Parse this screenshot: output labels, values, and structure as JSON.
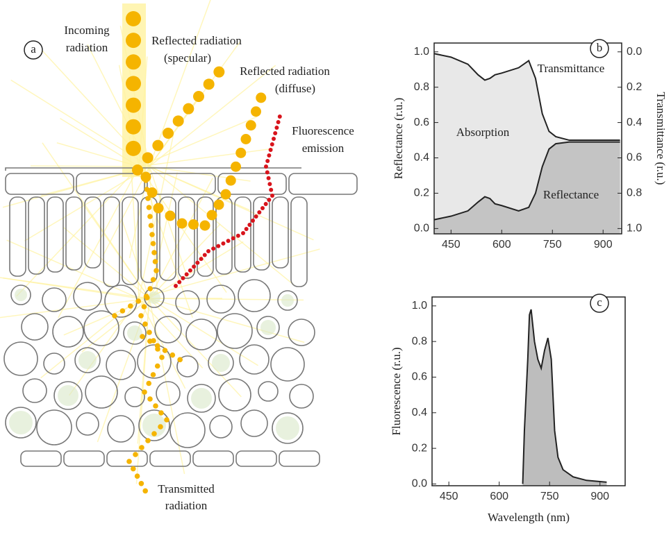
{
  "diagram": {
    "panel": "a",
    "labels": [
      {
        "lines": [
          "Incoming",
          "radiation"
        ]
      },
      {
        "lines": [
          "Reflected radiation",
          "(specular)"
        ]
      },
      {
        "lines": [
          "Reflected radiation",
          "(diffuse)"
        ]
      },
      {
        "lines": [
          "Fluorescence",
          "emission"
        ]
      },
      {
        "lines": [
          "Transmitted",
          "radiation"
        ]
      }
    ]
  },
  "chart_data": [
    {
      "type": "area",
      "panel": "b",
      "ylabel": "Reflectance (r.u.)",
      "y2label": "Transmittance (r.u.)",
      "annotations": [
        "Absorption"
      ],
      "x": [
        400,
        450,
        500,
        530,
        550,
        565,
        580,
        600,
        650,
        680,
        700,
        720,
        740,
        760,
        800,
        850,
        900,
        950
      ],
      "series": [
        {
          "name": "Transmittance",
          "axis": "y2",
          "color": "#222",
          "fill": "#e8e8e8",
          "values": [
            0.01,
            0.03,
            0.07,
            0.13,
            0.16,
            0.15,
            0.13,
            0.12,
            0.09,
            0.05,
            0.15,
            0.35,
            0.45,
            0.48,
            0.5,
            0.5,
            0.5,
            0.5
          ]
        },
        {
          "name": "Reflectance",
          "color": "#222",
          "fill": "#c4c4c4",
          "values": [
            0.05,
            0.07,
            0.1,
            0.15,
            0.18,
            0.17,
            0.14,
            0.13,
            0.1,
            0.12,
            0.2,
            0.35,
            0.45,
            0.48,
            0.49,
            0.49,
            0.49,
            0.49
          ]
        }
      ],
      "xlim": [
        400,
        955
      ],
      "xticks": [
        450,
        600,
        750,
        900
      ],
      "ylim": [
        -0.03,
        1.05
      ],
      "yticks": [
        {
          "value": 0,
          "label": "0.0"
        },
        0.2,
        0.4,
        0.6,
        0.8,
        {
          "value": 1,
          "label": "1.0"
        }
      ],
      "y2lim": [
        1.03,
        -0.05
      ],
      "y2ticks": [
        {
          "value": 0,
          "label": "0.0"
        },
        0.2,
        0.4,
        0.6,
        0.8,
        {
          "value": 1,
          "label": "1.0"
        }
      ]
    },
    {
      "type": "area",
      "panel": "c",
      "xlabel": "Wavelength (nm)",
      "ylabel": "Fluorescence (r.u.)",
      "x": [
        670,
        675,
        685,
        690,
        695,
        705,
        715,
        725,
        735,
        745,
        755,
        765,
        775,
        790,
        820,
        860,
        920
      ],
      "series": [
        {
          "name": null,
          "color": "#222",
          "fill": "#bdbdbd",
          "values": [
            0,
            0.3,
            0.7,
            0.95,
            0.98,
            0.8,
            0.7,
            0.65,
            0.75,
            0.82,
            0.7,
            0.3,
            0.15,
            0.08,
            0.04,
            0.02,
            0.01
          ]
        }
      ],
      "xlim": [
        400,
        975
      ],
      "xticks": [
        450,
        600,
        750,
        900
      ],
      "ylim": [
        -0.01,
        1.05
      ],
      "yticks": [
        {
          "value": 0,
          "label": "0.0"
        },
        0.2,
        0.4,
        0.6,
        0.8,
        {
          "value": 1,
          "label": "1.0"
        }
      ]
    }
  ]
}
